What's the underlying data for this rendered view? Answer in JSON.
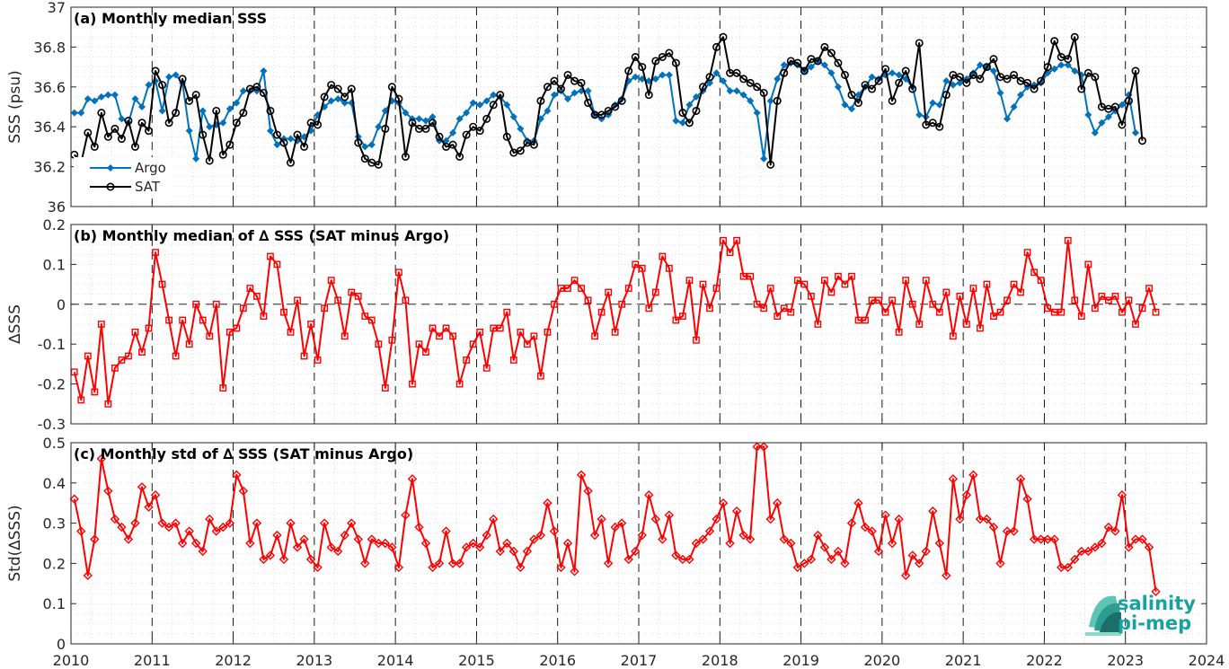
{
  "chart_data": [
    {
      "type": "line",
      "title": "(a) Monthly median SSS",
      "ylabel": "SSS (psu)",
      "ylim": [
        36,
        37
      ],
      "yticks": [
        36,
        36.2,
        36.4,
        36.6,
        36.8,
        37
      ],
      "ytick_labels": [
        "36",
        "36.2",
        "36.4",
        "36.6",
        "36.8",
        "37"
      ],
      "grid": true,
      "legend": "bottom-left",
      "series": [
        {
          "name": "Argo",
          "color": "#0072bd",
          "marker": "diamond-filled",
          "values": [
            36.47,
            36.47,
            36.54,
            36.53,
            36.55,
            36.56,
            36.56,
            36.44,
            36.42,
            36.54,
            36.5,
            36.61,
            36.63,
            36.48,
            36.65,
            36.66,
            36.62,
            36.38,
            36.24,
            36.48,
            36.4,
            36.41,
            36.42,
            36.49,
            36.52,
            36.58,
            36.58,
            36.58,
            36.68,
            36.38,
            36.31,
            36.34,
            36.34,
            36.33,
            36.35,
            36.38,
            36.46,
            36.5,
            36.53,
            36.54,
            36.52,
            36.52,
            36.35,
            36.3,
            36.31,
            36.4,
            36.48,
            36.53,
            36.52,
            36.47,
            36.44,
            36.44,
            36.43,
            36.45,
            36.33,
            36.33,
            36.37,
            36.44,
            36.47,
            36.52,
            36.51,
            36.53,
            36.56,
            36.55,
            36.51,
            36.45,
            36.39,
            36.33,
            36.33,
            36.44,
            36.48,
            36.56,
            36.58,
            36.54,
            36.57,
            36.58,
            36.58,
            36.46,
            36.44,
            36.46,
            36.51,
            36.54,
            36.63,
            36.65,
            36.64,
            36.63,
            36.64,
            36.66,
            36.66,
            36.43,
            36.42,
            36.51,
            36.55,
            36.58,
            36.62,
            36.67,
            36.63,
            36.58,
            36.58,
            36.56,
            36.53,
            36.47,
            36.24,
            36.53,
            36.64,
            36.71,
            36.72,
            36.71,
            36.68,
            36.7,
            36.73,
            36.71,
            36.67,
            36.6,
            36.51,
            36.49,
            36.56,
            36.6,
            36.65,
            36.64,
            36.66,
            36.67,
            36.66,
            36.64,
            36.6,
            36.46,
            36.45,
            36.52,
            36.51,
            36.63,
            36.61,
            36.62,
            36.64,
            36.67,
            36.71,
            36.7,
            36.68,
            36.57,
            36.44,
            36.5,
            36.56,
            36.6,
            36.61,
            36.62,
            36.67,
            36.69,
            36.71,
            36.71,
            36.68,
            36.66,
            36.46,
            36.37,
            36.42,
            36.45,
            36.48,
            36.51,
            36.56,
            36.37
          ]
        },
        {
          "name": "SAT",
          "color": "#000000",
          "marker": "circle-open",
          "values": [
            36.26,
            36.22,
            36.37,
            36.3,
            36.47,
            36.35,
            36.39,
            36.34,
            36.43,
            36.3,
            36.42,
            36.38,
            36.68,
            36.61,
            36.42,
            36.47,
            36.64,
            36.53,
            36.56,
            36.36,
            36.23,
            36.48,
            36.26,
            36.31,
            36.42,
            36.47,
            36.59,
            36.6,
            36.57,
            36.48,
            36.36,
            36.32,
            36.22,
            36.36,
            36.3,
            36.42,
            36.41,
            36.55,
            36.61,
            36.59,
            36.55,
            36.59,
            36.32,
            36.24,
            36.22,
            36.21,
            36.39,
            36.6,
            36.54,
            36.25,
            36.42,
            36.39,
            36.39,
            36.42,
            36.35,
            36.3,
            36.31,
            36.25,
            36.36,
            36.4,
            36.38,
            36.44,
            36.51,
            36.56,
            36.35,
            36.27,
            36.28,
            36.32,
            36.31,
            36.53,
            36.6,
            36.63,
            36.59,
            36.66,
            36.63,
            36.62,
            36.52,
            36.46,
            36.46,
            36.48,
            36.5,
            36.53,
            36.68,
            36.75,
            36.7,
            36.56,
            36.73,
            36.75,
            36.77,
            36.72,
            36.47,
            36.42,
            36.48,
            36.6,
            36.65,
            36.8,
            36.85,
            36.67,
            36.67,
            36.64,
            36.62,
            36.6,
            36.57,
            36.21,
            36.53,
            36.67,
            36.73,
            36.72,
            36.68,
            36.74,
            36.73,
            36.8,
            36.77,
            36.72,
            36.66,
            36.56,
            36.52,
            36.61,
            36.59,
            36.63,
            36.69,
            36.53,
            36.62,
            36.68,
            36.59,
            36.82,
            36.41,
            36.42,
            36.4,
            36.56,
            36.66,
            36.65,
            36.62,
            36.66,
            36.64,
            36.7,
            36.74,
            36.65,
            36.64,
            36.66,
            36.63,
            36.62,
            36.59,
            36.63,
            36.7,
            36.83,
            36.75,
            36.74,
            36.85,
            36.59,
            36.67,
            36.65,
            36.5,
            36.49,
            36.5,
            36.41,
            36.53,
            36.68,
            36.33
          ]
        }
      ]
    },
    {
      "type": "line",
      "title": "(b) Monthly median of ∆ SSS (SAT minus Argo)",
      "ylabel": "∆SSS",
      "ylim": [
        -0.3,
        0.2
      ],
      "yticks": [
        -0.3,
        -0.2,
        -0.1,
        0,
        0.1,
        0.2
      ],
      "ytick_labels": [
        "-0.3",
        "-0.2",
        "-0.1",
        "0",
        "0.1",
        "0.2"
      ],
      "zero_line": true,
      "grid": true,
      "series": [
        {
          "name": "",
          "color": "#ff0000",
          "marker": "square-open",
          "values": [
            -0.17,
            -0.24,
            -0.13,
            -0.22,
            -0.05,
            -0.25,
            -0.16,
            -0.14,
            -0.13,
            -0.07,
            -0.12,
            -0.06,
            0.13,
            0.05,
            -0.04,
            -0.13,
            -0.04,
            -0.1,
            0,
            -0.04,
            -0.08,
            0,
            -0.21,
            -0.07,
            -0.06,
            -0.01,
            0.04,
            0.02,
            -0.03,
            0.12,
            0.1,
            -0.02,
            -0.07,
            0.01,
            -0.13,
            -0.05,
            -0.14,
            -0.01,
            0.06,
            0.01,
            -0.08,
            0.03,
            0.02,
            -0.03,
            -0.04,
            -0.1,
            -0.21,
            -0.09,
            0.08,
            0.01,
            -0.2,
            -0.1,
            -0.12,
            -0.06,
            -0.08,
            -0.06,
            -0.08,
            -0.2,
            -0.14,
            -0.1,
            -0.07,
            -0.16,
            -0.06,
            -0.06,
            -0.02,
            -0.14,
            -0.07,
            -0.1,
            -0.08,
            -0.18,
            -0.07,
            0,
            0.04,
            0.04,
            0.06,
            0.04,
            0.01,
            -0.08,
            -0.02,
            0.03,
            -0.07,
            0,
            0.04,
            0.1,
            0.09,
            -0.01,
            0.03,
            0.12,
            0.09,
            -0.04,
            -0.03,
            0.06,
            -0.09,
            0.05,
            -0.01,
            0.04,
            0.16,
            0.13,
            0.16,
            0.07,
            0.07,
            0,
            -0.01,
            0.04,
            -0.03,
            -0.01,
            -0.02,
            0.06,
            0.05,
            0.02,
            -0.05,
            0.06,
            0.03,
            0.07,
            0.05,
            0.07,
            -0.04,
            -0.04,
            0.01,
            0.01,
            -0.02,
            0.01,
            -0.07,
            0.06,
            0,
            -0.05,
            0.06,
            0,
            -0.02,
            0.03,
            -0.08,
            0.02,
            -0.05,
            0.04,
            -0.06,
            0.05,
            -0.03,
            -0.02,
            0.01,
            0.05,
            0.03,
            0.13,
            0.08,
            0.06,
            -0.01,
            -0.02,
            -0.02,
            0.16,
            0.01,
            -0.03,
            0.1,
            -0.01,
            0.02,
            0.01,
            0.02,
            -0.02,
            0.01,
            -0.05,
            -0.01,
            0.04,
            -0.02
          ]
        }
      ]
    },
    {
      "type": "line",
      "title": "(c) Monthly std of ∆ SSS (SAT minus Argo)",
      "ylabel": "Std(∆SSS)",
      "ylim": [
        0,
        0.5
      ],
      "yticks": [
        0,
        0.1,
        0.2,
        0.3,
        0.4,
        0.5
      ],
      "ytick_labels": [
        "0",
        "0.1",
        "0.2",
        "0.3",
        "0.4",
        "0.5"
      ],
      "grid": true,
      "series": [
        {
          "name": "",
          "color": "#ff0000",
          "marker": "diamond-open",
          "values": [
            0.36,
            0.28,
            0.17,
            0.26,
            0.46,
            0.38,
            0.31,
            0.29,
            0.26,
            0.3,
            0.39,
            0.34,
            0.37,
            0.3,
            0.29,
            0.3,
            0.25,
            0.28,
            0.25,
            0.23,
            0.31,
            0.28,
            0.29,
            0.3,
            0.42,
            0.38,
            0.25,
            0.3,
            0.21,
            0.22,
            0.27,
            0.21,
            0.3,
            0.24,
            0.26,
            0.21,
            0.19,
            0.3,
            0.24,
            0.23,
            0.27,
            0.3,
            0.26,
            0.2,
            0.26,
            0.25,
            0.25,
            0.24,
            0.19,
            0.32,
            0.41,
            0.29,
            0.25,
            0.19,
            0.2,
            0.28,
            0.2,
            0.2,
            0.24,
            0.25,
            0.24,
            0.27,
            0.31,
            0.23,
            0.25,
            0.23,
            0.19,
            0.23,
            0.26,
            0.27,
            0.35,
            0.28,
            0.19,
            0.25,
            0.18,
            0.42,
            0.38,
            0.27,
            0.31,
            0.2,
            0.29,
            0.3,
            0.21,
            0.23,
            0.27,
            0.37,
            0.31,
            0.26,
            0.32,
            0.22,
            0.21,
            0.21,
            0.25,
            0.26,
            0.28,
            0.31,
            0.35,
            0.25,
            0.33,
            0.27,
            0.26,
            0.49,
            0.49,
            0.31,
            0.35,
            0.26,
            0.25,
            0.19,
            0.2,
            0.21,
            0.27,
            0.24,
            0.21,
            0.23,
            0.2,
            0.3,
            0.35,
            0.29,
            0.28,
            0.23,
            0.32,
            0.25,
            0.31,
            0.17,
            0.22,
            0.2,
            0.23,
            0.33,
            0.25,
            0.17,
            0.41,
            0.31,
            0.37,
            0.42,
            0.31,
            0.31,
            0.29,
            0.2,
            0.28,
            0.28,
            0.41,
            0.36,
            0.26,
            0.26,
            0.26,
            0.26,
            0.19,
            0.19,
            0.21,
            0.23,
            0.23,
            0.24,
            0.25,
            0.29,
            0.28,
            0.37,
            0.24,
            0.26,
            0.26,
            0.24,
            0.13
          ]
        }
      ]
    }
  ],
  "x_axis": {
    "start": "2010-01",
    "step": "1 month",
    "xlim": [
      2010,
      2024
    ],
    "tick_labels": [
      "2010",
      "2011",
      "2012",
      "2013",
      "2014",
      "2015",
      "2016",
      "2017",
      "2018",
      "2019",
      "2020",
      "2021",
      "2022",
      "2023",
      "2024"
    ],
    "dashed_year_lines": true
  },
  "logo": {
    "line1": "salinity",
    "line2": "pi-mep"
  }
}
